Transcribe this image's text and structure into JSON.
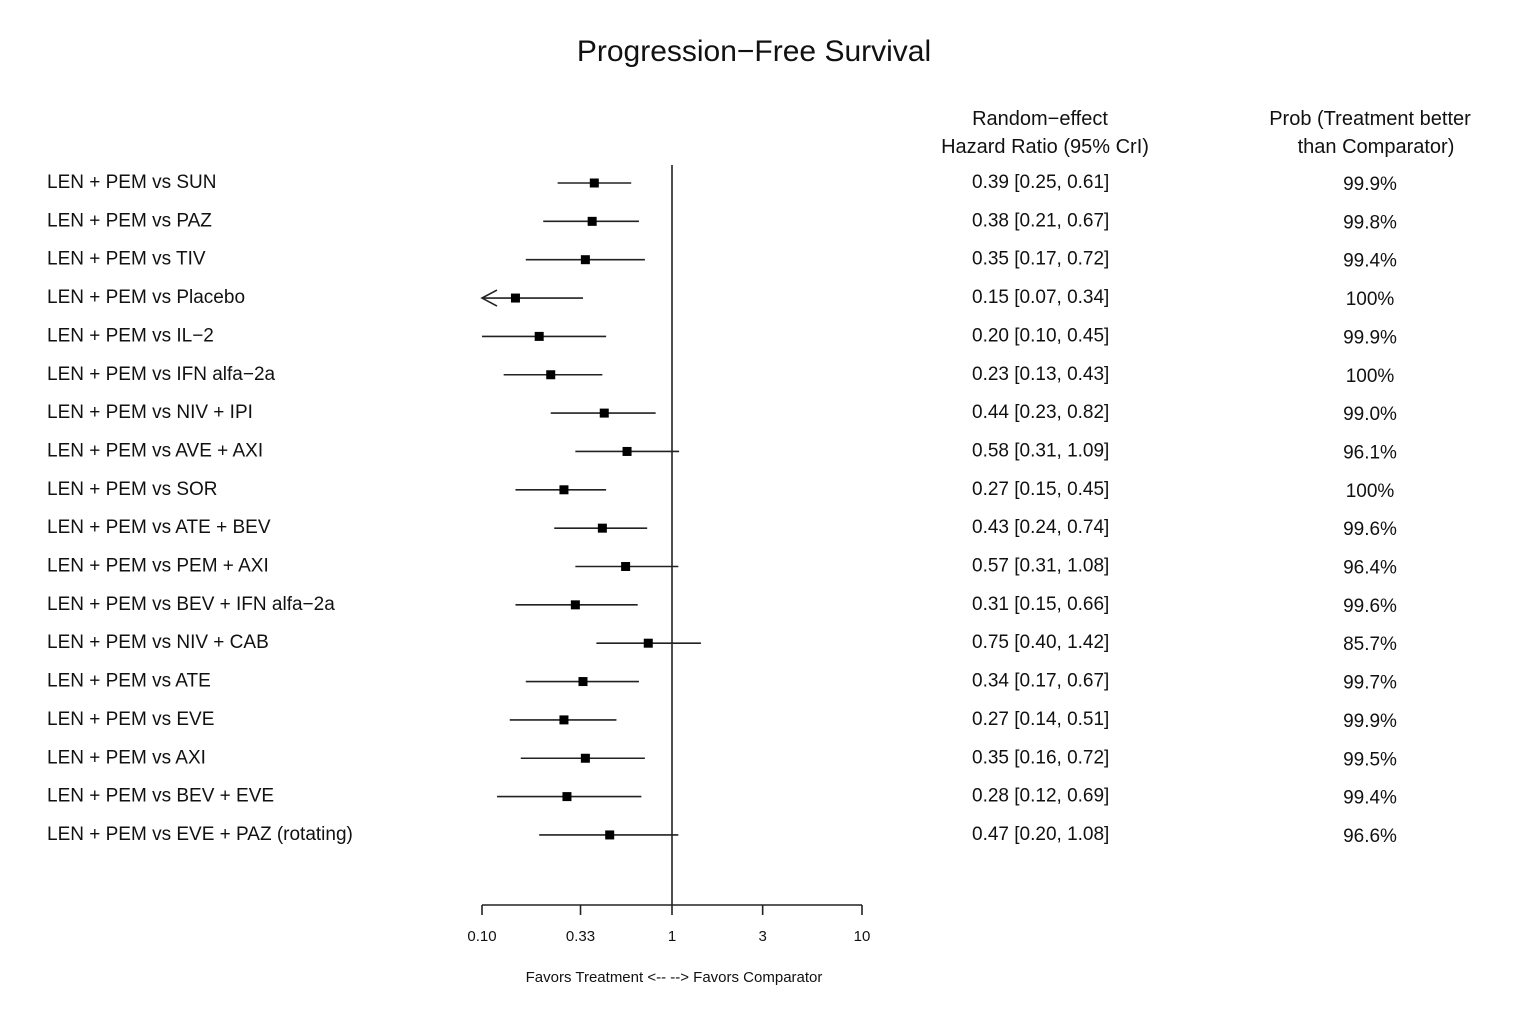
{
  "chart_data": {
    "type": "forest",
    "title": "Progression−Free Survival",
    "xscale": "log",
    "xlim": [
      0.1,
      10
    ],
    "reference_line": 1,
    "xticks": [
      0.1,
      0.33,
      1,
      3,
      10
    ],
    "xtick_labels": [
      "0.10",
      "0.33",
      "1",
      "3",
      "10"
    ],
    "xlabel": "Favors Treatment <-- --> Favors Comparator",
    "col_headers": {
      "hr_line1": "Random−effect",
      "hr_line2": "Hazard Ratio (95% CrI)",
      "prob_line1": "Prob (Treatment better",
      "prob_line2": "than Comparator)"
    },
    "rows": [
      {
        "label": "LEN + PEM vs SUN",
        "hr": 0.39,
        "lo": 0.25,
        "hi": 0.61,
        "hr_text": "0.39 [0.25, 0.61]",
        "prob": "99.9%"
      },
      {
        "label": "LEN + PEM vs PAZ",
        "hr": 0.38,
        "lo": 0.21,
        "hi": 0.67,
        "hr_text": "0.38 [0.21, 0.67]",
        "prob": "99.8%"
      },
      {
        "label": "LEN + PEM vs TIV",
        "hr": 0.35,
        "lo": 0.17,
        "hi": 0.72,
        "hr_text": "0.35 [0.17, 0.72]",
        "prob": "99.4%"
      },
      {
        "label": "LEN + PEM vs Placebo",
        "hr": 0.15,
        "lo": 0.07,
        "hi": 0.34,
        "hr_text": "0.15 [0.07, 0.34]",
        "prob": "100%"
      },
      {
        "label": "LEN + PEM vs IL−2",
        "hr": 0.2,
        "lo": 0.1,
        "hi": 0.45,
        "hr_text": "0.20 [0.10, 0.45]",
        "prob": "99.9%"
      },
      {
        "label": "LEN + PEM vs IFN alfa−2a",
        "hr": 0.23,
        "lo": 0.13,
        "hi": 0.43,
        "hr_text": "0.23 [0.13, 0.43]",
        "prob": "100%"
      },
      {
        "label": "LEN + PEM vs NIV + IPI",
        "hr": 0.44,
        "lo": 0.23,
        "hi": 0.82,
        "hr_text": "0.44 [0.23, 0.82]",
        "prob": "99.0%"
      },
      {
        "label": "LEN + PEM vs AVE + AXI",
        "hr": 0.58,
        "lo": 0.31,
        "hi": 1.09,
        "hr_text": "0.58 [0.31, 1.09]",
        "prob": "96.1%"
      },
      {
        "label": "LEN + PEM vs SOR",
        "hr": 0.27,
        "lo": 0.15,
        "hi": 0.45,
        "hr_text": "0.27 [0.15, 0.45]",
        "prob": "100%"
      },
      {
        "label": "LEN + PEM vs ATE + BEV",
        "hr": 0.43,
        "lo": 0.24,
        "hi": 0.74,
        "hr_text": "0.43 [0.24, 0.74]",
        "prob": "99.6%"
      },
      {
        "label": "LEN + PEM vs PEM + AXI",
        "hr": 0.57,
        "lo": 0.31,
        "hi": 1.08,
        "hr_text": "0.57 [0.31, 1.08]",
        "prob": "96.4%"
      },
      {
        "label": "LEN + PEM vs BEV + IFN alfa−2a",
        "hr": 0.31,
        "lo": 0.15,
        "hi": 0.66,
        "hr_text": "0.31 [0.15, 0.66]",
        "prob": "99.6%"
      },
      {
        "label": "LEN + PEM vs NIV + CAB",
        "hr": 0.75,
        "lo": 0.4,
        "hi": 1.42,
        "hr_text": "0.75 [0.40, 1.42]",
        "prob": "85.7%"
      },
      {
        "label": "LEN + PEM vs ATE",
        "hr": 0.34,
        "lo": 0.17,
        "hi": 0.67,
        "hr_text": "0.34 [0.17, 0.67]",
        "prob": "99.7%"
      },
      {
        "label": "LEN + PEM vs EVE",
        "hr": 0.27,
        "lo": 0.14,
        "hi": 0.51,
        "hr_text": "0.27 [0.14, 0.51]",
        "prob": "99.9%"
      },
      {
        "label": "LEN + PEM vs AXI",
        "hr": 0.35,
        "lo": 0.16,
        "hi": 0.72,
        "hr_text": "0.35 [0.16, 0.72]",
        "prob": "99.5%"
      },
      {
        "label": "LEN + PEM vs BEV + EVE",
        "hr": 0.28,
        "lo": 0.12,
        "hi": 0.69,
        "hr_text": "0.28 [0.12, 0.69]",
        "prob": "99.4%"
      },
      {
        "label": "LEN + PEM vs EVE + PAZ (rotating)",
        "hr": 0.47,
        "lo": 0.2,
        "hi": 1.08,
        "hr_text": "0.47 [0.20, 1.08]",
        "prob": "96.6%"
      }
    ]
  }
}
